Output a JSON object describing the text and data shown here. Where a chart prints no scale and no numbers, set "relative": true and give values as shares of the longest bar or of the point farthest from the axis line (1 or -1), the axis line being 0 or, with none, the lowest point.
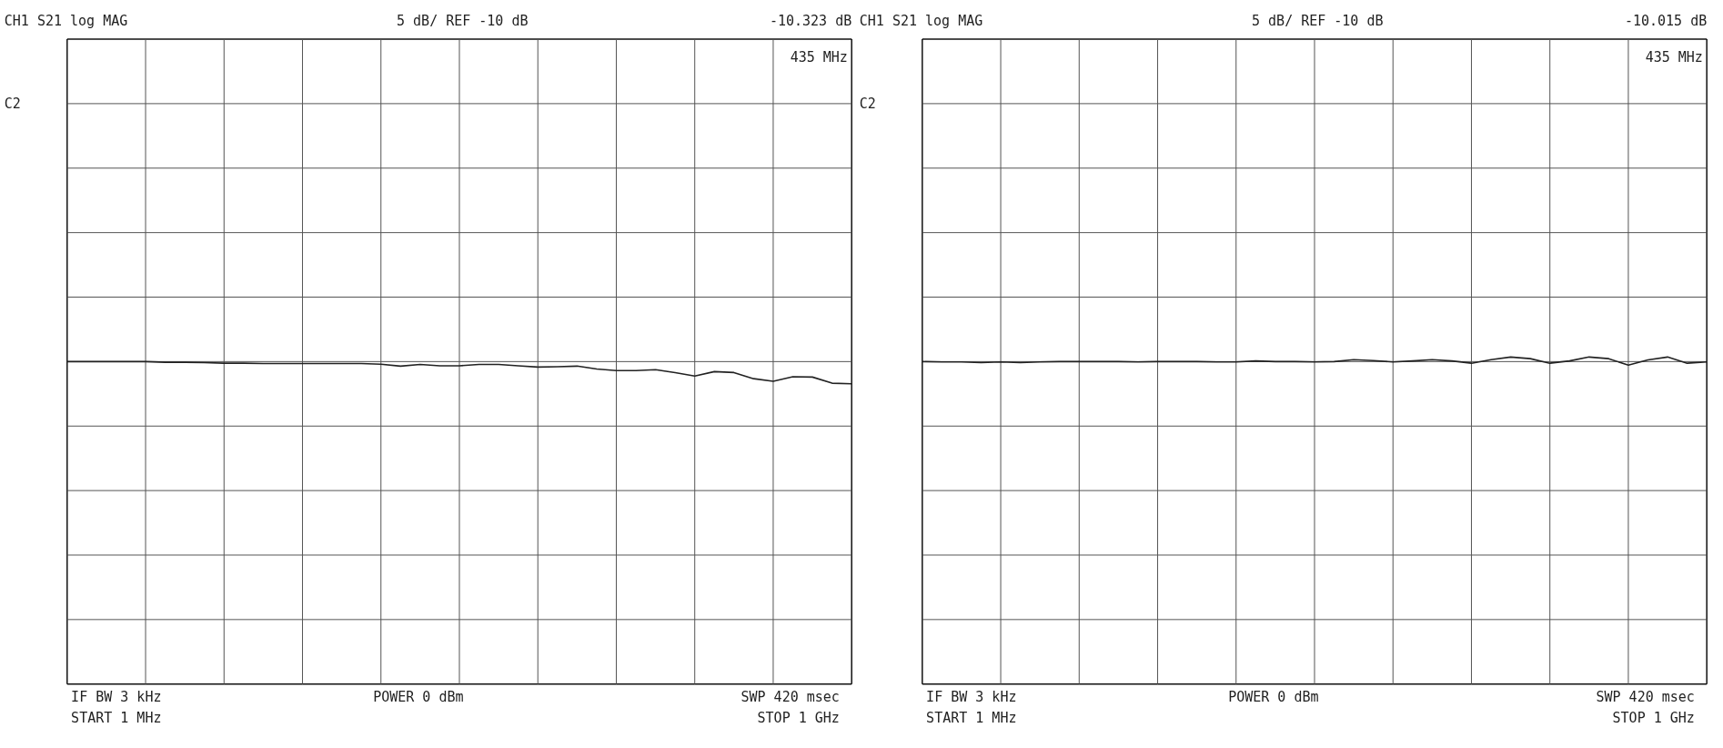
{
  "chart_data": [
    {
      "type": "line",
      "title": "CH1 S21  log MAG",
      "relative": true,
      "grid": true,
      "tick_labels": false,
      "annotations": [
        "5 dB/ REF -10 dB",
        "-10.323 dB",
        "435 MHz",
        "C2",
        "IF BW 3 kHz",
        "START  1 MHz",
        "POWER  0 dBm",
        "SWP  420 msec",
        "STOP  1 GHz"
      ],
      "categories": [
        null,
        null,
        null,
        null,
        null,
        null,
        null,
        null,
        null,
        null,
        null,
        null,
        null,
        null,
        null,
        null,
        null,
        null,
        null,
        null,
        null,
        null,
        null,
        null,
        null,
        null,
        null,
        null,
        null,
        null,
        null,
        null,
        null,
        null,
        null,
        null,
        null,
        null,
        null,
        null,
        null
      ],
      "series": [
        {
          "color": "#222222",
          "values": [
            1.0,
            1.0,
            1.0,
            1.0,
            1.0,
            0.998,
            0.998,
            0.997,
            0.995,
            0.995,
            0.994,
            0.994,
            0.994,
            0.994,
            0.994,
            0.994,
            0.992,
            0.986,
            0.991,
            0.987,
            0.987,
            0.991,
            0.991,
            0.987,
            0.983,
            0.984,
            0.986,
            0.977,
            0.972,
            0.972,
            0.975,
            0.966,
            0.955,
            0.969,
            0.966,
            0.947,
            0.939,
            0.953,
            0.952,
            0.933,
            0.931
          ]
        }
      ]
    },
    {
      "type": "line",
      "title": "CH1 S21  log MAG",
      "relative": true,
      "grid": true,
      "tick_labels": false,
      "annotations": [
        "5 dB/ REF -10 dB",
        "-10.015 dB",
        "435 MHz",
        "C2",
        "IF BW 3 kHz",
        "START  1 MHz",
        "POWER  0 dBm",
        "SWP  420 msec",
        "STOP  1 GHz"
      ],
      "categories": [
        null,
        null,
        null,
        null,
        null,
        null,
        null,
        null,
        null,
        null,
        null,
        null,
        null,
        null,
        null,
        null,
        null,
        null,
        null,
        null,
        null,
        null,
        null,
        null,
        null,
        null,
        null,
        null,
        null,
        null,
        null,
        null,
        null,
        null,
        null,
        null,
        null,
        null,
        null,
        null,
        null
      ],
      "series": [
        {
          "color": "#222222",
          "values": [
            0.986,
            0.985,
            0.985,
            0.983,
            0.985,
            0.983,
            0.985,
            0.986,
            0.986,
            0.986,
            0.986,
            0.985,
            0.986,
            0.986,
            0.986,
            0.985,
            0.985,
            0.988,
            0.986,
            0.986,
            0.985,
            0.986,
            0.992,
            0.989,
            0.985,
            0.988,
            0.992,
            0.988,
            0.981,
            0.992,
            1.0,
            0.995,
            0.981,
            0.988,
            1.0,
            0.995,
            0.975,
            0.991,
            1.0,
            0.981,
            0.985
          ]
        }
      ]
    }
  ]
}
